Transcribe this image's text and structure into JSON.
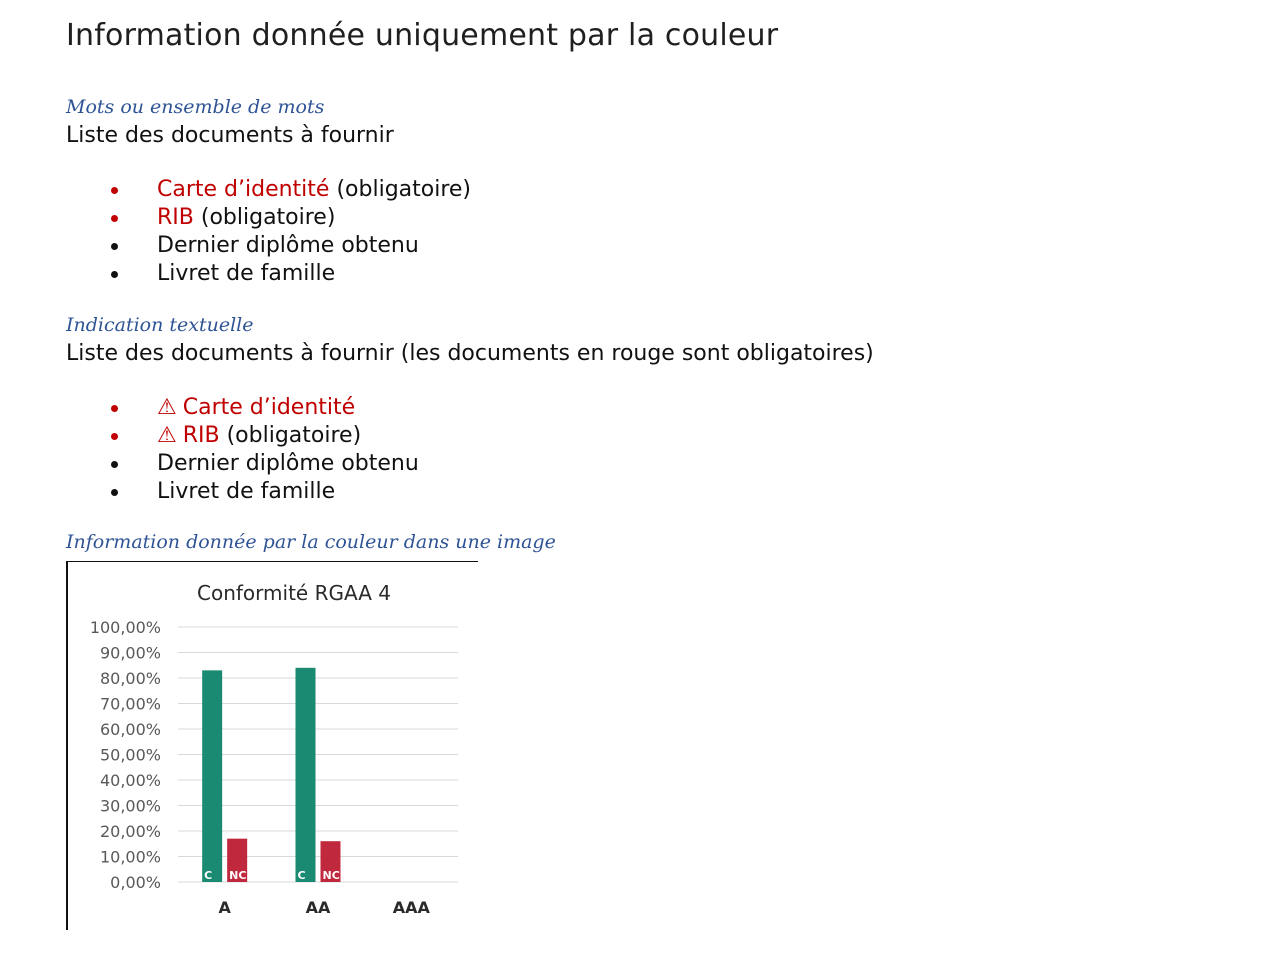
{
  "title": "Information donnée uniquement par la couleur",
  "section1": {
    "heading": "Mots ou ensemble de mots",
    "intro": "Liste des documents à fournir",
    "items": [
      {
        "colored": "Carte d’identité",
        "rest": " (obligatoire)"
      },
      {
        "colored": "RIB",
        "rest": " (obligatoire)"
      },
      {
        "colored": "",
        "rest": "Dernier diplôme obtenu"
      },
      {
        "colored": "",
        "rest": "Livret de famille"
      }
    ]
  },
  "section2": {
    "heading": "Indication textuelle",
    "intro": "Liste des documents à fournir (les documents en rouge sont obligatoires)",
    "warn_symbol": "⚠",
    "items": [
      {
        "colored": "Carte d’identité",
        "rest": ""
      },
      {
        "colored": "RIB",
        "rest": " (obligatoire)"
      },
      {
        "colored": "",
        "rest": "Dernier diplôme obtenu"
      },
      {
        "colored": "",
        "rest": "Livret de famille"
      }
    ]
  },
  "section3": {
    "heading": "Information donnée par la couleur dans une image"
  },
  "colors": {
    "required": "#c00000",
    "heading": "#2f5496",
    "conforme": "#1a8a72",
    "non_conforme": "#c0283e"
  },
  "chart_data": {
    "type": "bar",
    "title": "Conformité RGAA 4",
    "categories": [
      "A",
      "AA",
      "AAA"
    ],
    "series": [
      {
        "name": "C",
        "values": [
          83,
          84,
          0
        ]
      },
      {
        "name": "NC",
        "values": [
          17,
          16,
          0
        ]
      }
    ],
    "ylim": [
      0,
      100
    ],
    "yticks": [
      "0,00%",
      "10,00%",
      "20,00%",
      "30,00%",
      "40,00%",
      "50,00%",
      "60,00%",
      "70,00%",
      "80,00%",
      "90,00%",
      "100,00%"
    ],
    "grid": true
  }
}
